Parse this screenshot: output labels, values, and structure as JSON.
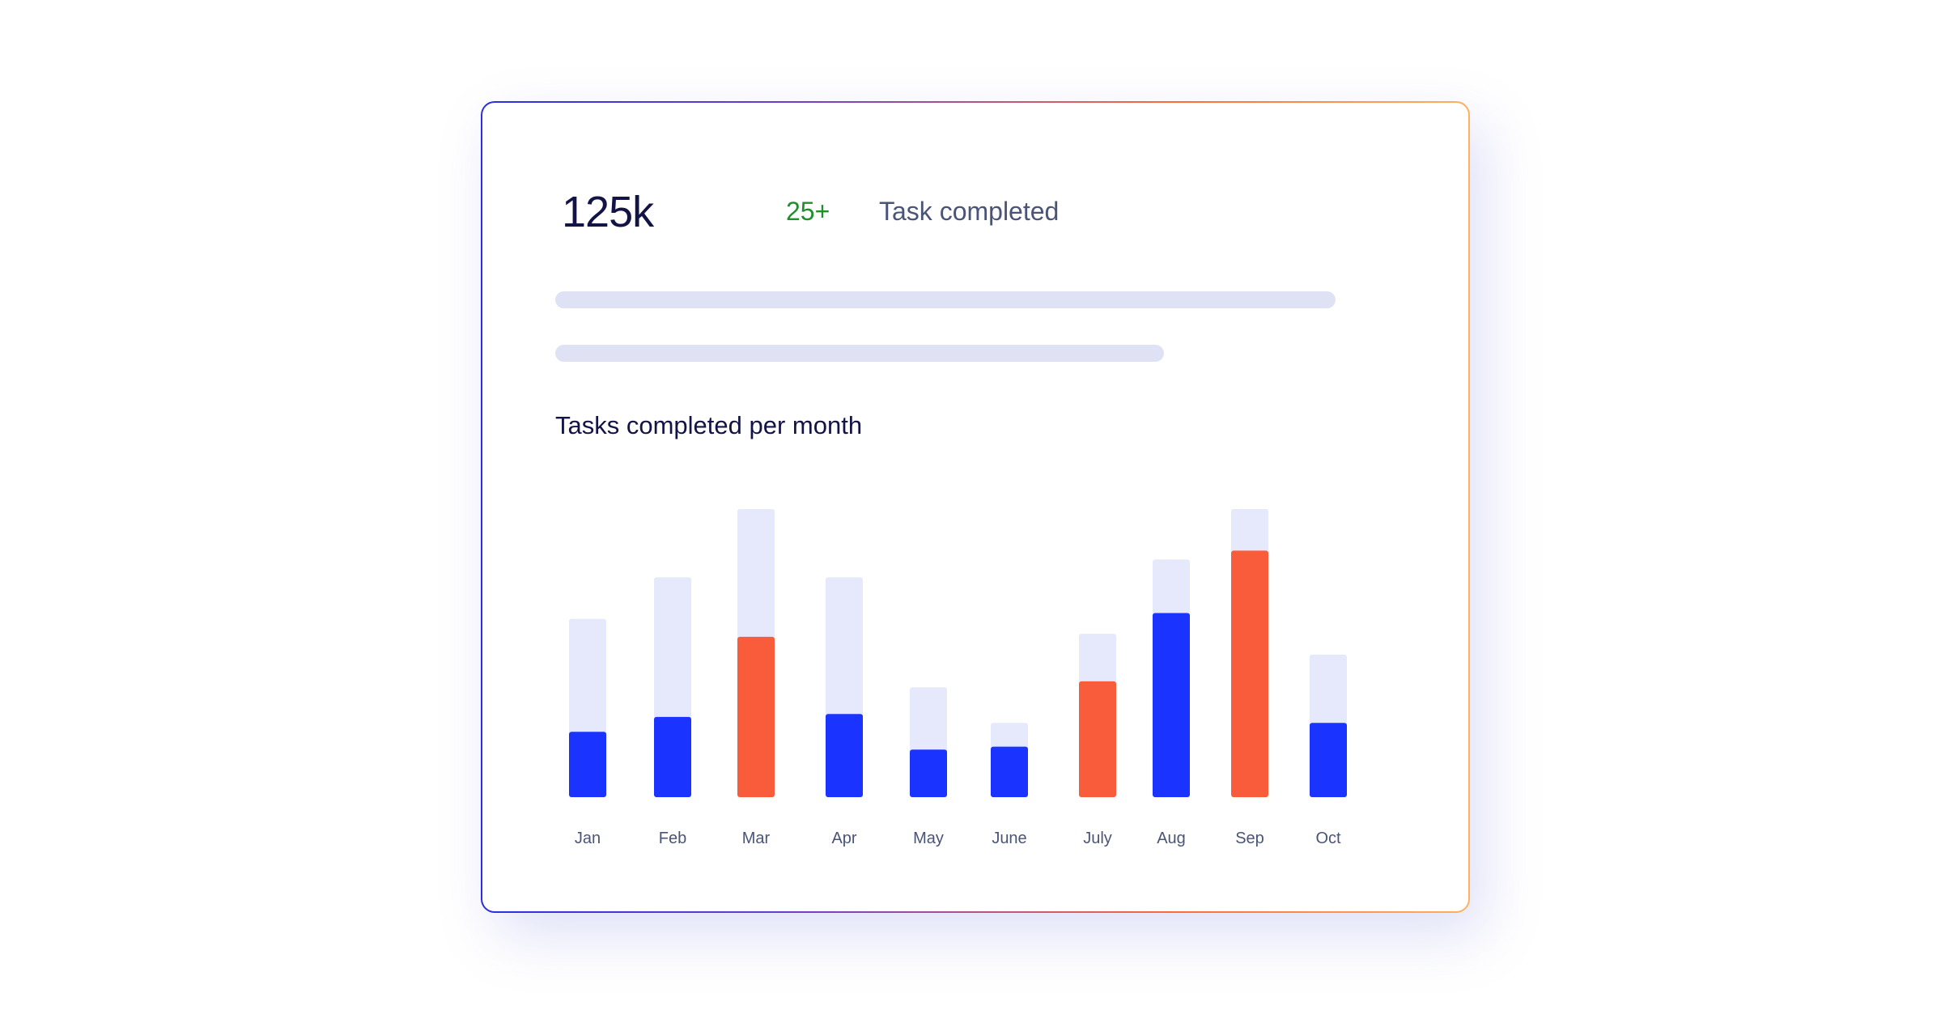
{
  "stats": {
    "value": "125k",
    "delta": "25+",
    "label": "Task completed"
  },
  "colors": {
    "track": "#e6e8fb",
    "primary": "#1b33ff",
    "highlight": "#f85c3a",
    "placeholder": "#dfe2f4"
  },
  "chart_data": {
    "type": "bar",
    "title": "Tasks completed per month",
    "xlabel": "",
    "ylabel": "",
    "categories": [
      "Jan",
      "Feb",
      "Mar",
      "Apr",
      "May",
      "June",
      "July",
      "Aug",
      "Sep",
      "Oct"
    ],
    "values": [
      22,
      27,
      54,
      28,
      16,
      17,
      39,
      62,
      83,
      25
    ],
    "totals": [
      60,
      74,
      97,
      74,
      37,
      25,
      55,
      80,
      97,
      48
    ],
    "highlighted": [
      false,
      false,
      true,
      false,
      false,
      false,
      true,
      false,
      true,
      false
    ],
    "ylim": [
      0,
      100
    ],
    "grid": false,
    "legend": "none"
  }
}
